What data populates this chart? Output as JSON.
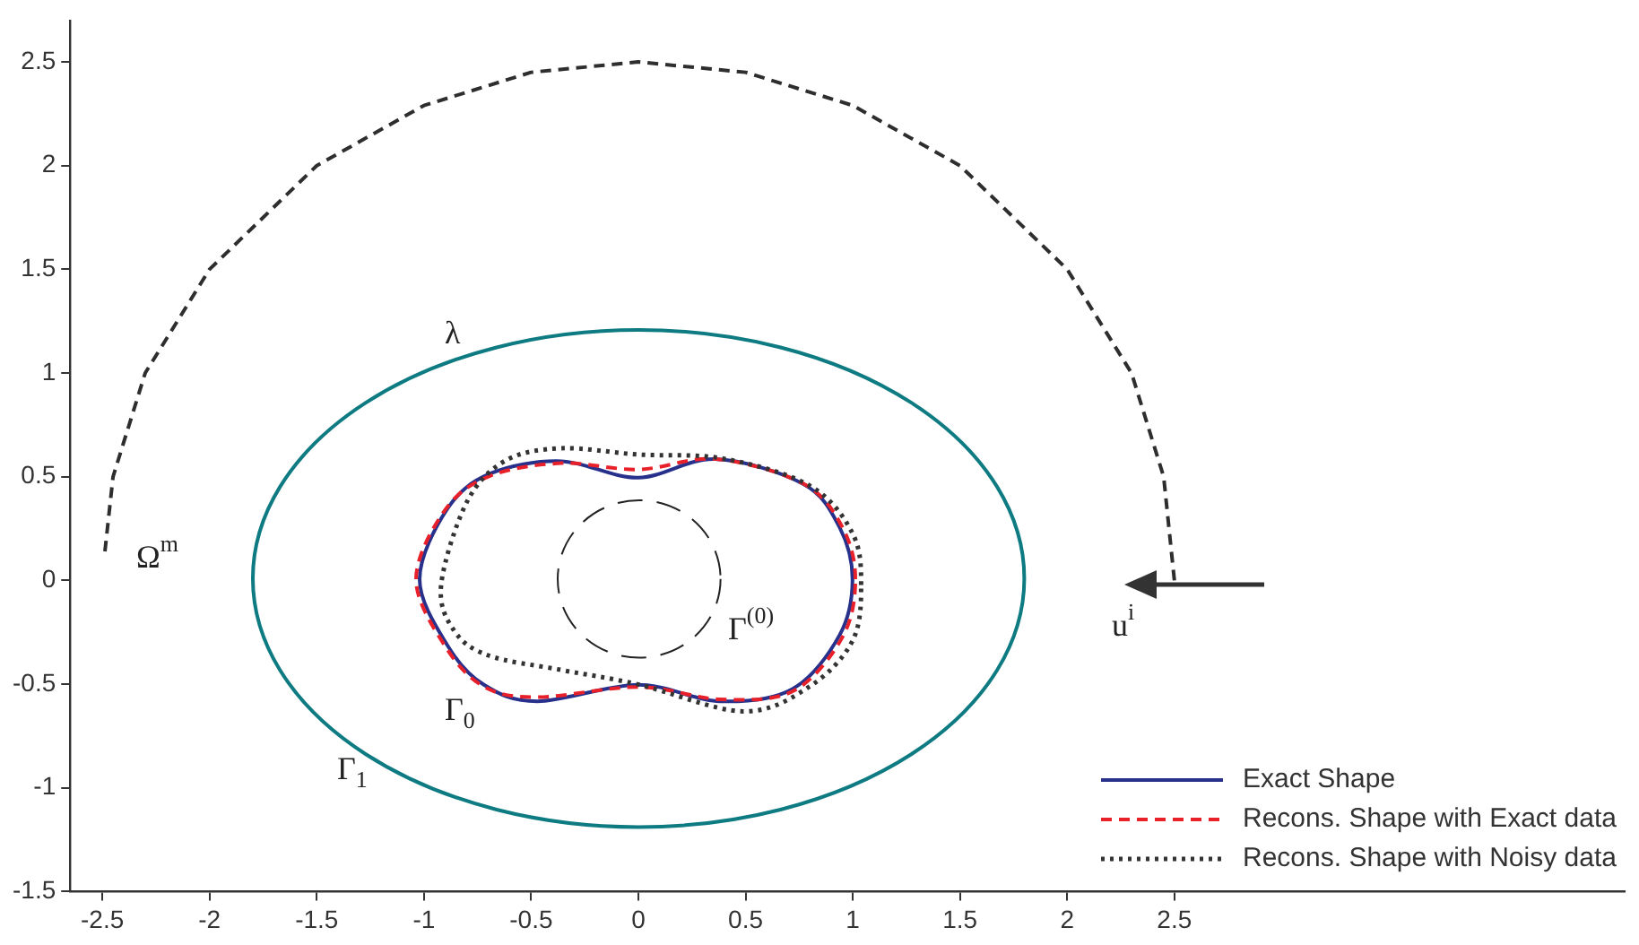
{
  "chart_data": {
    "type": "line",
    "xlim": [
      -2.65,
      4.6
    ],
    "ylim": [
      -1.5,
      2.7
    ],
    "xticks": [
      -2.5,
      -2,
      -1.5,
      -1,
      -0.5,
      0,
      0.5,
      1,
      1.5,
      2,
      2.5
    ],
    "yticks": [
      -1.5,
      -1,
      -0.5,
      0,
      0.5,
      1,
      1.5,
      2,
      2.5
    ],
    "grid": false,
    "marker": "none",
    "series": [
      {
        "color": "#2e2e2e",
        "line_style": "dashed",
        "x": [
          2.5,
          2.45,
          2.3,
          2.0,
          1.5,
          1.0,
          0.5,
          0,
          -0.5,
          -1.0,
          -1.5,
          -2.0,
          -2.3,
          -2.45,
          -2.49
        ],
        "values": [
          0,
          0.5,
          1.0,
          1.5,
          2.0,
          2.29,
          2.45,
          2.5,
          2.45,
          2.29,
          2.0,
          1.5,
          1.0,
          0.5,
          0.12
        ]
      }
    ],
    "annotations": [
      "λ",
      "Ω$^{m}$",
      "u$^{i}$",
      "Γ$^{(0)}$",
      "Γ$_{0}$",
      "Γ$_{1}$",
      "Exact Shape",
      "Recons. Shape with Exact data",
      "Recons. Shape with Noisy data"
    ]
  }
}
